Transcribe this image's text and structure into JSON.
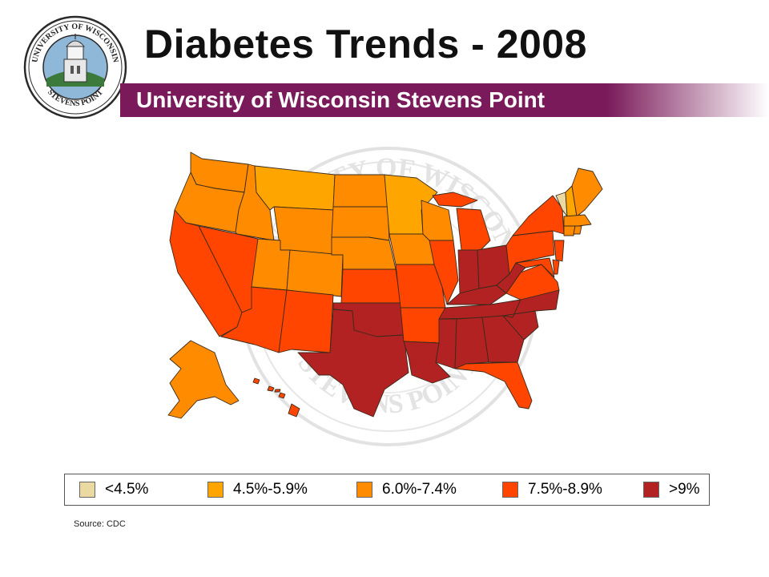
{
  "title": "Diabetes Trends - 2008",
  "subtitle": "University of Wisconsin Stevens Point",
  "seal": {
    "text_top": "UNIVERSITY OF WISCONSIN",
    "text_bottom": "STEVENS POINT"
  },
  "watermark": {
    "text_top": "UNIVERSITY OF WISCONSIN",
    "text_bottom": "STEVENS POINT"
  },
  "colors": {
    "banner": "#7a1a5a",
    "bin_1": "#ead9a0",
    "bin_2": "#ffa500",
    "bin_3": "#ff8c00",
    "bin_4": "#ff4500",
    "bin_5": "#b22222",
    "map_border": "#3a2a1a"
  },
  "legend": [
    {
      "label": "<4.5%",
      "color": "#ead9a0"
    },
    {
      "label": "4.5%-5.9%",
      "color": "#ffa500"
    },
    {
      "label": "6.0%-7.4%",
      "color": "#ff8c00"
    },
    {
      "label": "7.5%-8.9%",
      "color": "#ff4500"
    },
    {
      "label": ">9%",
      "color": "#b22222"
    }
  ],
  "source": "Source:  CDC",
  "chart_data": {
    "type": "choropleth",
    "legend": [
      "<4.5%",
      "4.5%-5.9%",
      "6.0%-7.4%",
      "7.5%-8.9%",
      ">9%"
    ]
  }
}
